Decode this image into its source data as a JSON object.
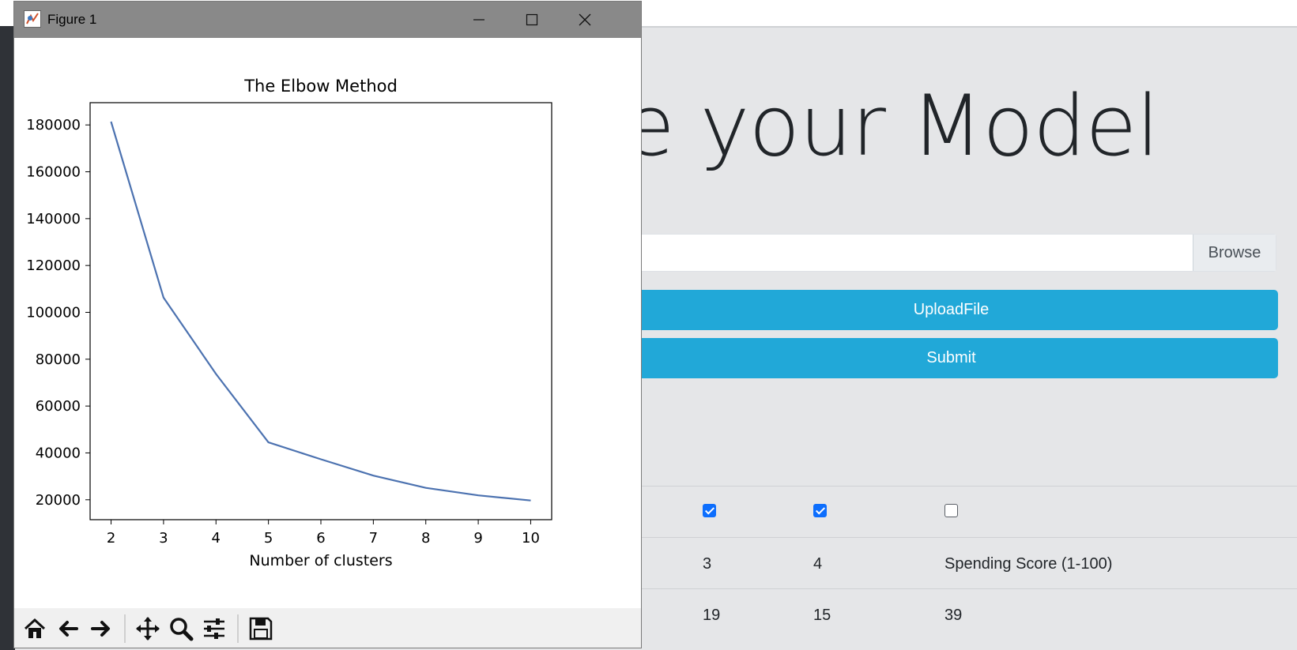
{
  "page": {
    "heading": "eate your Model",
    "browse_label": "Browse",
    "upload_label": "UploadFile",
    "submit_label": "Submit",
    "table": {
      "checkboxes": [
        true,
        true,
        false
      ],
      "header_cells": [
        "3",
        "4",
        "Spending Score (1-100)"
      ],
      "row1_cells": [
        "19",
        "15",
        "39"
      ]
    }
  },
  "figure": {
    "title": "Figure 1",
    "icons": {
      "minimize": "minimize-icon",
      "maximize": "maximize-icon",
      "close": "close-icon",
      "toolbar": [
        "home-icon",
        "back-arrow-icon",
        "forward-arrow-icon",
        "pan-icon",
        "zoom-icon",
        "configure-subplots-icon",
        "save-icon"
      ]
    }
  },
  "chart_data": {
    "type": "line",
    "title": "The Elbow Method",
    "xlabel": "Number of clusters",
    "ylabel": "",
    "x": [
      2,
      3,
      4,
      5,
      6,
      7,
      8,
      9,
      10
    ],
    "series": [
      {
        "values": [
          181400,
          106300,
          73700,
          44500,
          37300,
          30300,
          25100,
          21900,
          19700
        ],
        "color": "#4c72b0"
      }
    ],
    "xlim": [
      1.6,
      10.4
    ],
    "ylim": [
      11500,
      189500
    ],
    "xticks": [
      2,
      3,
      4,
      5,
      6,
      7,
      8,
      9,
      10
    ],
    "yticks": [
      20000,
      40000,
      60000,
      80000,
      100000,
      120000,
      140000,
      160000,
      180000
    ],
    "grid": false,
    "legend": false
  }
}
